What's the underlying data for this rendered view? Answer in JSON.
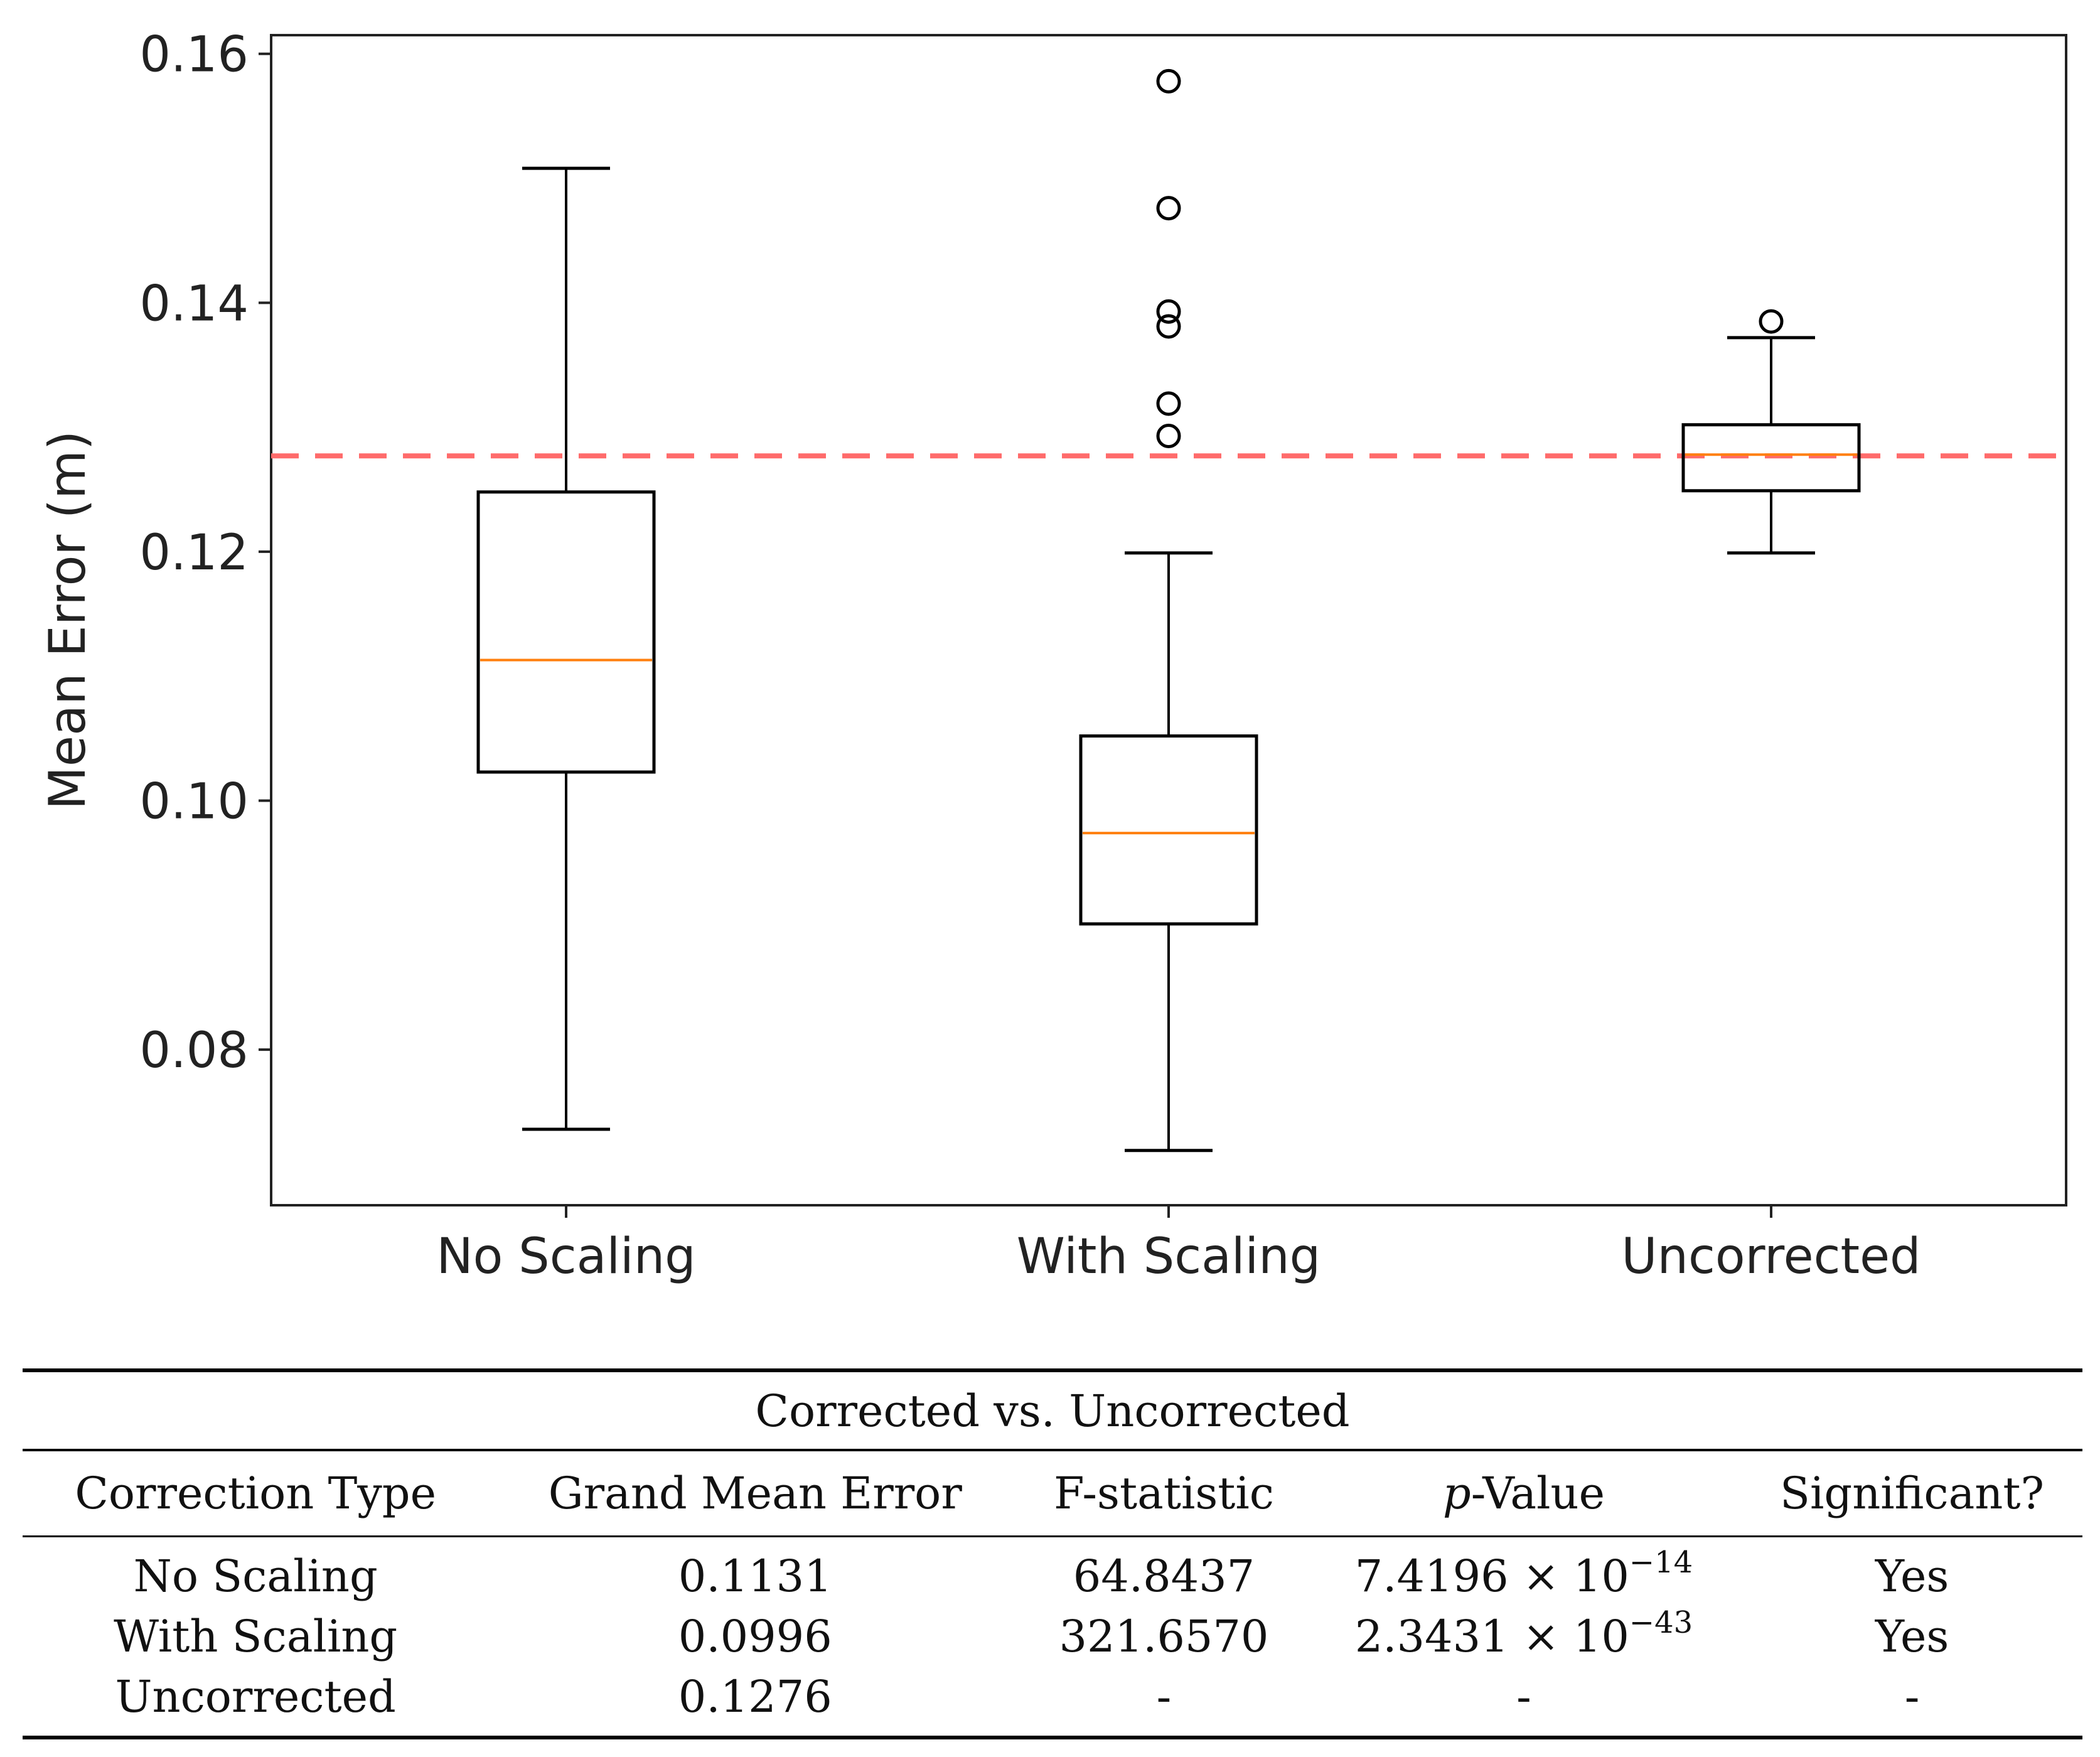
{
  "chart_data": {
    "type": "box",
    "title": "",
    "xlabel": "",
    "ylabel": "Mean Error (m)",
    "ylim": [
      0.0675,
      0.1615
    ],
    "yticks": [
      0.08,
      0.1,
      0.12,
      0.14,
      0.16
    ],
    "ytick_labels": [
      "0.08",
      "0.10",
      "0.12",
      "0.14",
      "0.16"
    ],
    "categories": [
      "No Scaling",
      "With Scaling",
      "Uncorrected"
    ],
    "boxes": [
      {
        "name": "No Scaling",
        "whisker_low": 0.0736,
        "q1": 0.1023,
        "median": 0.1113,
        "q3": 0.1248,
        "whisker_high": 0.1508,
        "outliers": []
      },
      {
        "name": "With Scaling",
        "whisker_low": 0.0719,
        "q1": 0.0901,
        "median": 0.0974,
        "q3": 0.1052,
        "whisker_high": 0.1199,
        "outliers": [
          0.1578,
          0.1476,
          0.1393,
          0.1381,
          0.1319,
          0.1293
        ]
      },
      {
        "name": "Uncorrected",
        "whisker_low": 0.1199,
        "q1": 0.1249,
        "median": 0.1278,
        "q3": 0.1302,
        "whisker_high": 0.1372,
        "outliers": [
          0.1385
        ]
      }
    ],
    "reference_line": {
      "value": 0.1277,
      "style": "dashed",
      "color": "#ff6b6b"
    },
    "colors": {
      "box": "#000000",
      "median": "#ff7f0e",
      "axis": "#222222"
    }
  },
  "table": {
    "caption": "Corrected vs. Uncorrected",
    "headers": {
      "correction_type": "Correction Type",
      "grand_mean": "Grand Mean Error",
      "f_stat": "F-statistic",
      "p_value_italic": "p",
      "p_value_rest": "-Value",
      "significant": "Significant?"
    },
    "rows": [
      {
        "type": "No Scaling",
        "mean": "0.1131",
        "f": "64.8437",
        "p_mantissa": "7.4196 × 10",
        "p_exp": "−14",
        "sig": "Yes"
      },
      {
        "type": "With Scaling",
        "mean": "0.0996",
        "f": "321.6570",
        "p_mantissa": "2.3431 × 10",
        "p_exp": "−43",
        "sig": "Yes"
      },
      {
        "type": "Uncorrected",
        "mean": "0.1276",
        "f": "-",
        "p_mantissa": "-",
        "p_exp": "",
        "sig": "-"
      }
    ]
  }
}
